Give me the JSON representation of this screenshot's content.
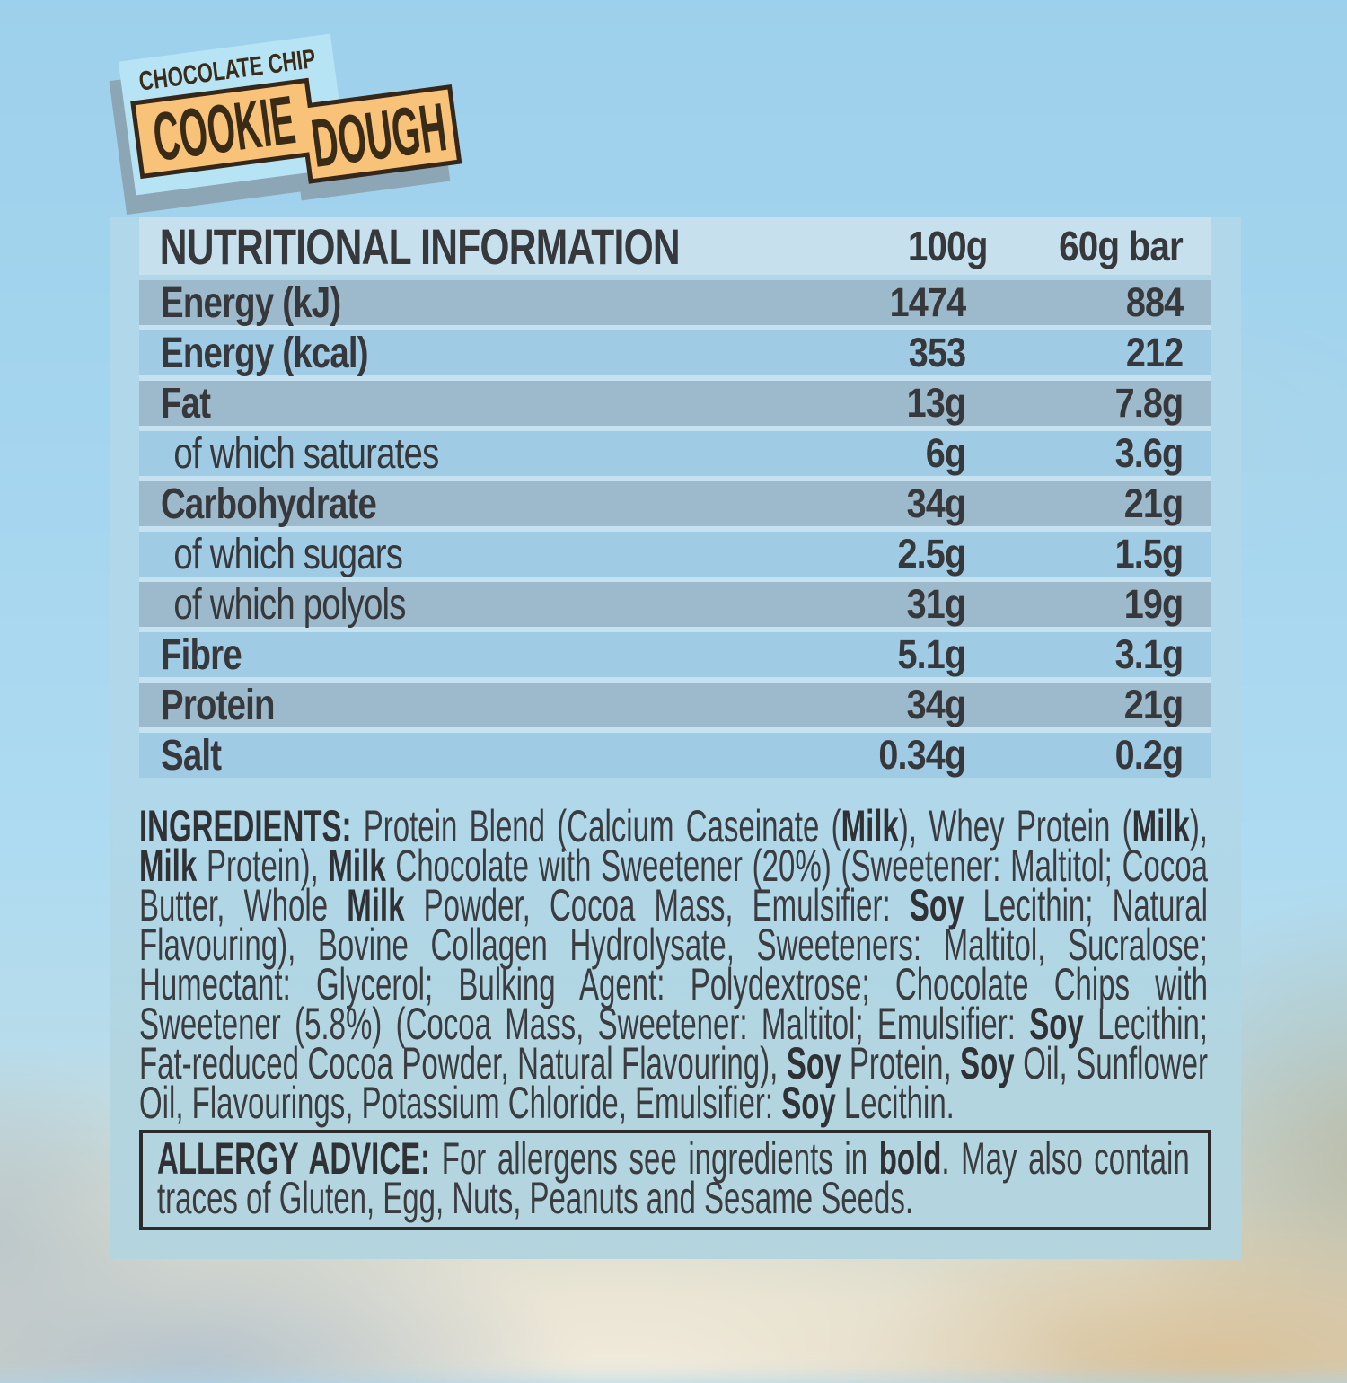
{
  "badge": {
    "flavor_line": "CHOCOLATE CHIP",
    "product_word_1": "COOKIE",
    "product_word_2": "DOUGH"
  },
  "nutrition_table": {
    "title": "NUTRITIONAL INFORMATION",
    "col_per_100g": "100g",
    "col_per_60g_bar": "60g bar",
    "rows": [
      {
        "label": "Energy (kJ)",
        "per_100g": "1474",
        "per_60g_bar": "884"
      },
      {
        "label": "Energy (kcal)",
        "per_100g": "353",
        "per_60g_bar": "212"
      },
      {
        "label": "Fat",
        "per_100g": "13g",
        "per_60g_bar": "7.8g"
      },
      {
        "label": "of which saturates",
        "per_100g": "6g",
        "per_60g_bar": "3.6g"
      },
      {
        "label": "Carbohydrate",
        "per_100g": "34g",
        "per_60g_bar": "21g"
      },
      {
        "label": "of which sugars",
        "per_100g": "2.5g",
        "per_60g_bar": "1.5g"
      },
      {
        "label": "of which polyols",
        "per_100g": "31g",
        "per_60g_bar": "19g"
      },
      {
        "label": "Fibre",
        "per_100g": "5.1g",
        "per_60g_bar": "3.1g"
      },
      {
        "label": "Protein",
        "per_100g": "34g",
        "per_60g_bar": "21g"
      },
      {
        "label": "Salt",
        "per_100g": "0.34g",
        "per_60g_bar": "0.2g"
      }
    ]
  },
  "ingredients": {
    "segments": [
      {
        "t": "INGREDIENTS:",
        "b": true
      },
      {
        "t": " Protein Blend (Calcium Caseinate (",
        "b": false
      },
      {
        "t": "Milk",
        "b": true
      },
      {
        "t": "), Whey Protein (",
        "b": false
      },
      {
        "t": "Milk",
        "b": true
      },
      {
        "t": "), ",
        "b": false
      },
      {
        "t": "Milk",
        "b": true
      },
      {
        "t": " Protein), ",
        "b": false
      },
      {
        "t": "Milk",
        "b": true
      },
      {
        "t": " Chocolate with Sweetener (20%) (Sweetener: Maltitol; Cocoa Butter, Whole ",
        "b": false
      },
      {
        "t": "Milk",
        "b": true
      },
      {
        "t": " Powder, Cocoa Mass, Emulsifier: ",
        "b": false
      },
      {
        "t": "Soy",
        "b": true
      },
      {
        "t": " Lecithin; Natural Flavouring), Bovine Collagen Hydrolysate, Sweeteners: Maltitol, Sucralose; Humectant: Glycerol; Bulking Agent: Polydextrose; Chocolate Chips with Sweetener (5.8%) (Cocoa Mass, Sweetener: Maltitol; Emulsifier: ",
        "b": false
      },
      {
        "t": "Soy",
        "b": true
      },
      {
        "t": " Lecithin; Fat-reduced Cocoa Powder, Natural Flavouring), ",
        "b": false
      },
      {
        "t": "Soy",
        "b": true
      },
      {
        "t": " Protein, ",
        "b": false
      },
      {
        "t": "Soy",
        "b": true
      },
      {
        "t": " Oil, Sunflower Oil, Flavourings, Potassium Chloride, Emulsifier: ",
        "b": false
      },
      {
        "t": "Soy",
        "b": true
      },
      {
        "t": " Lecithin.",
        "b": false
      }
    ]
  },
  "allergy": {
    "segments": [
      {
        "t": "ALLERGY ADVICE:",
        "b": true
      },
      {
        "t": " For allergens see ingredients in ",
        "b": false
      },
      {
        "t": "bold",
        "b": true
      },
      {
        "t": ". May also contain traces of Gluten, Egg, Nuts, Peanuts and Sesame Seeds.",
        "b": false
      }
    ]
  },
  "colors": {
    "panel_blue": "#b0d8ea",
    "thead_blue": "#c7e0ed",
    "sep_blue": "#c6e2f0",
    "row_dark": "#9cbacb",
    "row_light": "#9fcce4",
    "ink": "#37383b",
    "badge_orange": "#f8c379",
    "badge_plate_blue": "#b7e4f4",
    "badge_outline": "#35271a",
    "badge_text": "#3a2b17",
    "badge_shadow": "#8ba1af"
  }
}
